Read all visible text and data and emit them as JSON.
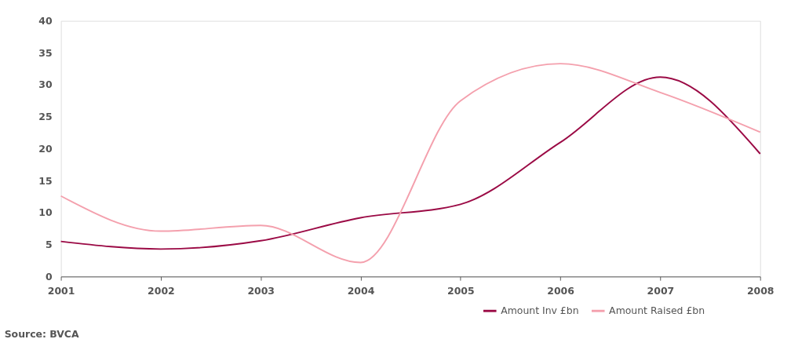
{
  "chart_data": {
    "type": "line",
    "x": [
      2001,
      2002,
      2003,
      2004,
      2005,
      2006,
      2007,
      2008
    ],
    "series": [
      {
        "name": "Amount Inv £bn",
        "color": "#9b0a45",
        "values": [
          5.5,
          4.3,
          5.6,
          9.2,
          11.3,
          21,
          31.2,
          19.2
        ]
      },
      {
        "name": "Amount Raised £bn",
        "color": "#f4a0ad",
        "values": [
          12.6,
          7.1,
          8,
          2.2,
          27.5,
          33.3,
          28.8,
          22.6
        ]
      }
    ],
    "xlim": [
      2001,
      2008
    ],
    "xticks": [
      2001,
      2002,
      2003,
      2004,
      2005,
      2006,
      2007,
      2008
    ],
    "ylim": [
      0,
      40
    ],
    "yticks": [
      0,
      5,
      10,
      15,
      20,
      25,
      30,
      35,
      40
    ],
    "grid": false,
    "legend": "bottom right",
    "marker": "none",
    "line_style": "solid",
    "annotations": [
      "Source: BVCA"
    ]
  }
}
